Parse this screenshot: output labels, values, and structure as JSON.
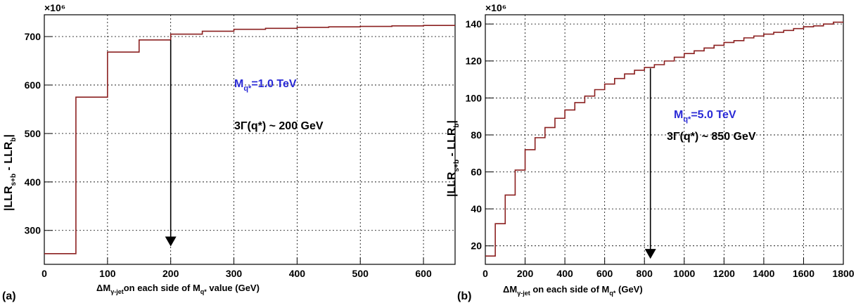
{
  "chart_data": [
    {
      "type": "line",
      "panel_label": "(a)",
      "exponent_label": "×10⁶",
      "x_label_pre": "ΔM",
      "x_label_sub": "γ-jet",
      "x_label_mid": "on each side of M",
      "x_label_sub2": "q*",
      "x_label_post": " value (GeV)",
      "y_label_pre": "|LLR",
      "y_label_sub1": "s+b",
      "y_label_mid": " - LLR",
      "y_label_sub2": "b",
      "y_label_post": "|",
      "xlim": [
        0,
        650
      ],
      "ylim": [
        230,
        745
      ],
      "x_ticks": [
        0,
        100,
        200,
        300,
        400,
        500,
        600
      ],
      "y_ticks": [
        300,
        400,
        500,
        600,
        700
      ],
      "grid": true,
      "line_color": "#8b2020",
      "series": [
        {
          "bin_edges": [
            0,
            50,
            100,
            150,
            200,
            250,
            300,
            350,
            400,
            450,
            500,
            550,
            600,
            650
          ],
          "values": [
            252,
            575,
            668,
            693,
            705,
            711,
            715,
            717,
            719,
            720,
            721,
            722,
            723
          ]
        }
      ],
      "annotations": {
        "mass_pre": "M",
        "mass_sub": "q*",
        "mass_post": "=1.0 TeV",
        "mass_color": "#2a2ad6",
        "width_text": "3Γ(q*) ~ 200 GeV"
      },
      "arrow": {
        "x": 200,
        "y_from": 693,
        "y_to": 267
      }
    },
    {
      "type": "line",
      "panel_label": "(b)",
      "exponent_label": "×10⁶",
      "x_label_pre": "ΔM",
      "x_label_sub": "γ-jet",
      "x_label_mid": " on each side of M",
      "x_label_sub2": "q*",
      "x_label_post": " (GeV)",
      "y_label_pre": "|LLR",
      "y_label_sub1": "s+b",
      "y_label_mid": " - LLR",
      "y_label_sub2": "b",
      "y_label_post": "|",
      "xlim": [
        0,
        1800
      ],
      "ylim": [
        10,
        145
      ],
      "x_ticks": [
        0,
        200,
        400,
        600,
        800,
        1000,
        1200,
        1400,
        1600,
        1800
      ],
      "y_ticks": [
        20,
        40,
        60,
        80,
        100,
        120,
        140
      ],
      "grid": true,
      "line_color": "#8b2020",
      "series": [
        {
          "bin_edges": [
            0,
            50,
            100,
            150,
            200,
            250,
            300,
            350,
            400,
            450,
            500,
            550,
            600,
            650,
            700,
            750,
            800,
            850,
            900,
            950,
            1000,
            1050,
            1100,
            1150,
            1200,
            1250,
            1300,
            1350,
            1400,
            1450,
            1500,
            1550,
            1600,
            1650,
            1700,
            1750,
            1800
          ],
          "values": [
            14.5,
            32,
            47.5,
            61,
            72,
            78.5,
            84,
            89,
            93.5,
            97.5,
            101,
            104.5,
            107.5,
            110.5,
            113,
            115,
            116.5,
            118,
            120,
            122,
            124,
            125.5,
            127,
            128.5,
            130,
            131,
            132.5,
            133.5,
            134.5,
            135.5,
            136.5,
            137.5,
            138.5,
            139,
            140,
            141
          ]
        }
      ],
      "annotations": {
        "mass_pre": "M",
        "mass_sub": "q*",
        "mass_post": "=5.0 TeV",
        "mass_color": "#2a2ad6",
        "width_text": "3Γ(q*) ~ 850 GeV"
      },
      "arrow": {
        "x": 830,
        "y_from": 116,
        "y_to": 13
      }
    }
  ]
}
